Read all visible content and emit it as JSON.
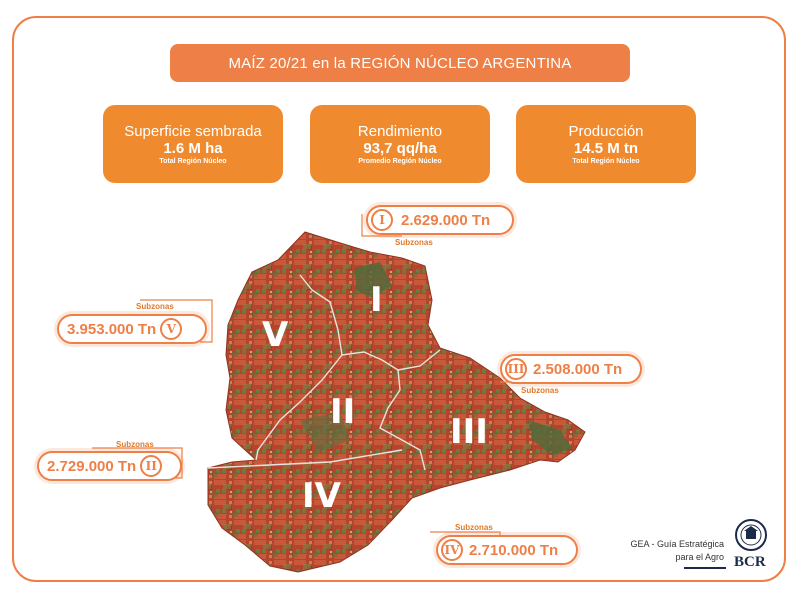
{
  "title": "MAÍZ 20/21 en la REGIÓN NÚCLEO ARGENTINA",
  "stats": [
    {
      "label": "Superficie sembrada",
      "value": "1.6 M ha",
      "note": "Total Región Núcleo"
    },
    {
      "label": "Rendimiento",
      "value": "93,7 qq/ha",
      "note": "Promedio Región Núcleo"
    },
    {
      "label": "Producción",
      "value": "14.5 M tn",
      "note": "Total Región Núcleo"
    }
  ],
  "zones": {
    "I": {
      "numeral": "I",
      "value": "2.629.000 Tn",
      "sub": "Subzonas"
    },
    "II": {
      "numeral": "II",
      "value": "2.729.000 Tn",
      "sub": "Subzonas"
    },
    "III": {
      "numeral": "III",
      "value": "2.508.000 Tn",
      "sub": "Subzonas"
    },
    "IV": {
      "numeral": "IV",
      "value": "2.710.000 Tn",
      "sub": "Subzonas"
    },
    "V": {
      "numeral": "V",
      "value": "3.953.000 Tn",
      "sub": "Subzonas"
    }
  },
  "footer": {
    "line1": "GEA - Guía Estratégica",
    "line2": "para el Agro",
    "brand": "BCR"
  },
  "colors": {
    "accent": "#ee7f46",
    "card": "#f08a2e",
    "map_base": "#b3452e",
    "navy": "#1c2b4a"
  }
}
